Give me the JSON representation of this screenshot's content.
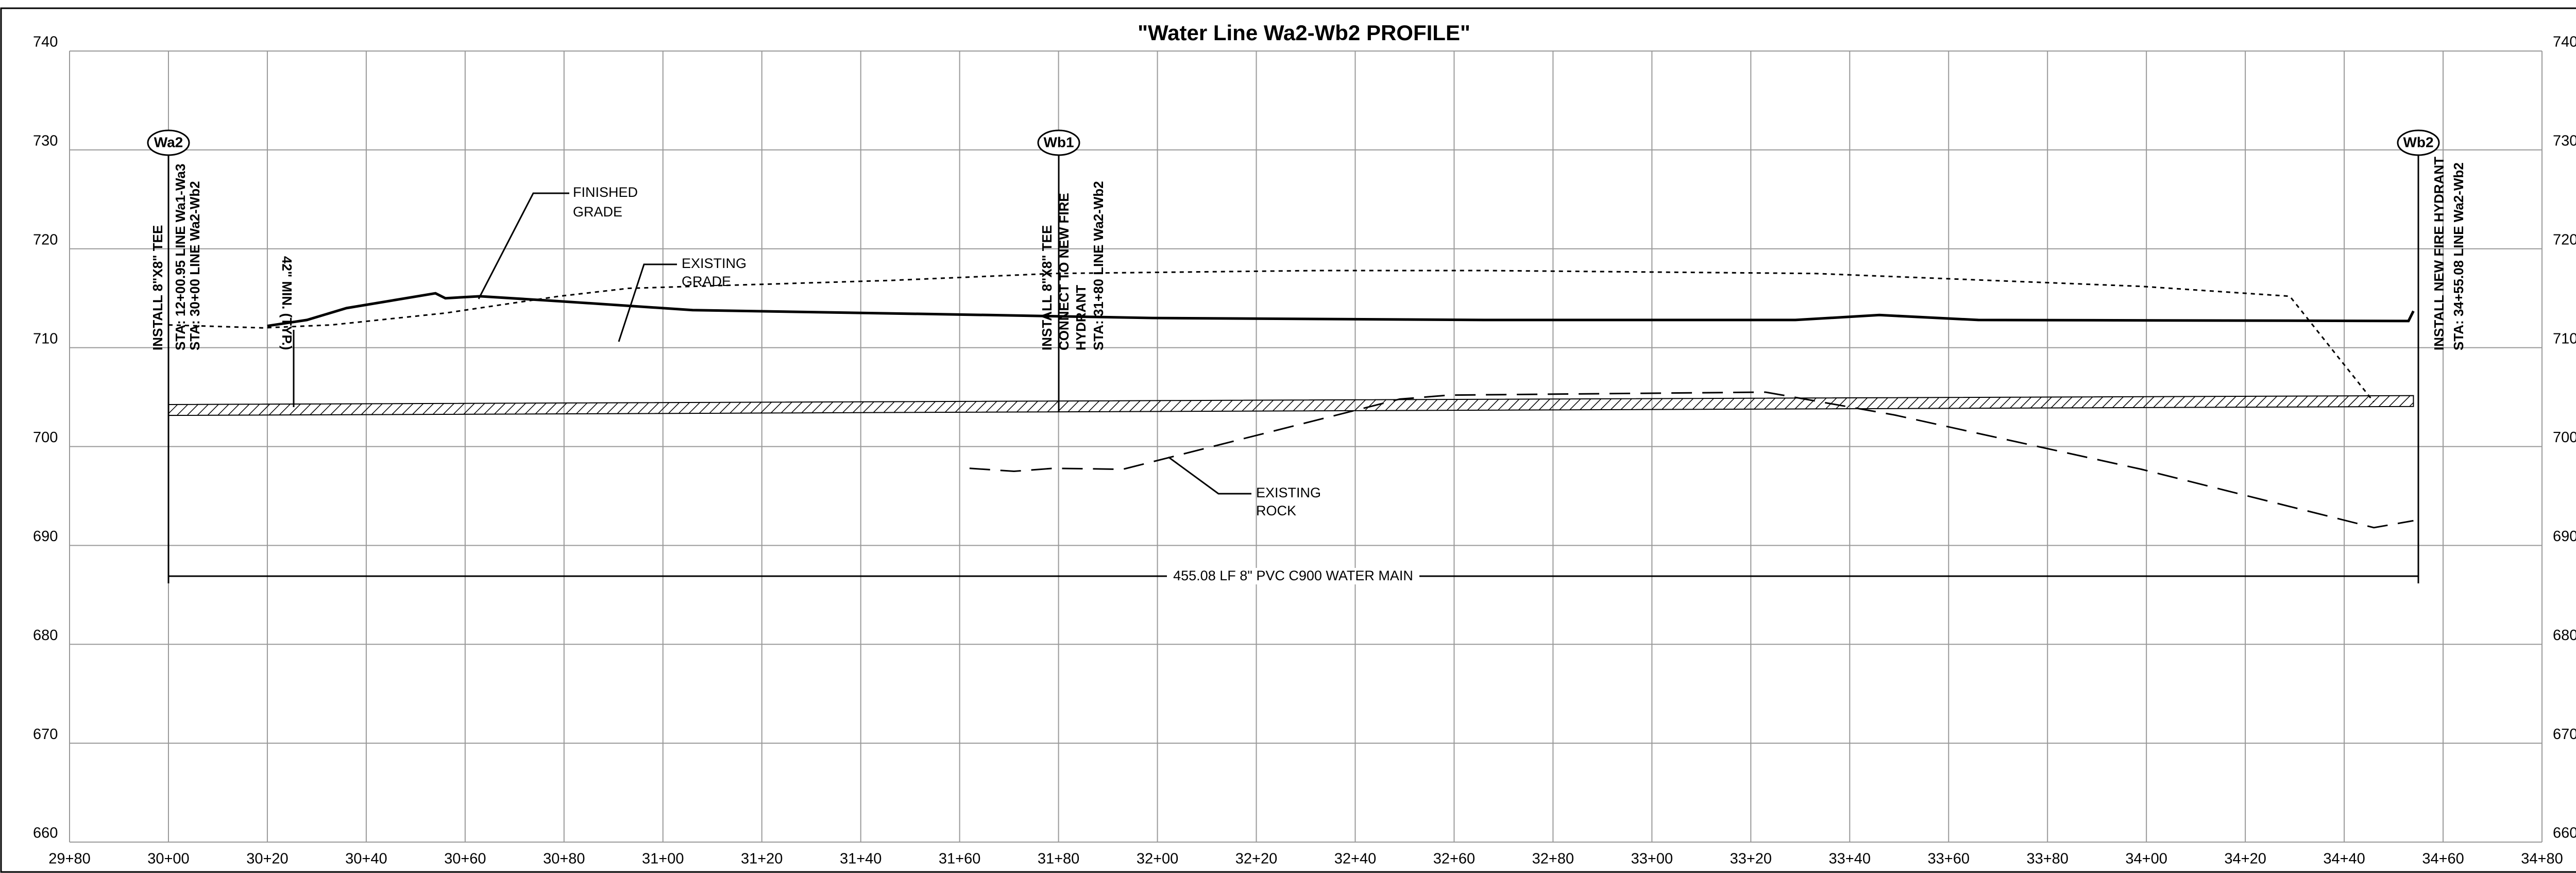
{
  "chart_data": {
    "type": "line",
    "title": "\"Water Line Wa2-Wb2 PROFILE\"",
    "xlim": [
      2980,
      3480
    ],
    "ylim": [
      660,
      740
    ],
    "grid": true,
    "xticks": [
      {
        "value": 2980,
        "label": "29+80"
      },
      {
        "value": 3000,
        "label": "30+00"
      },
      {
        "value": 3020,
        "label": "30+20"
      },
      {
        "value": 3040,
        "label": "30+40"
      },
      {
        "value": 3060,
        "label": "30+60"
      },
      {
        "value": 3080,
        "label": "30+80"
      },
      {
        "value": 3100,
        "label": "31+00"
      },
      {
        "value": 3120,
        "label": "31+20"
      },
      {
        "value": 3140,
        "label": "31+40"
      },
      {
        "value": 3160,
        "label": "31+60"
      },
      {
        "value": 3180,
        "label": "31+80"
      },
      {
        "value": 3200,
        "label": "32+00"
      },
      {
        "value": 3220,
        "label": "32+20"
      },
      {
        "value": 3240,
        "label": "32+40"
      },
      {
        "value": 3260,
        "label": "32+60"
      },
      {
        "value": 3280,
        "label": "32+80"
      },
      {
        "value": 3300,
        "label": "33+00"
      },
      {
        "value": 3320,
        "label": "33+20"
      },
      {
        "value": 3340,
        "label": "33+40"
      },
      {
        "value": 3360,
        "label": "33+60"
      },
      {
        "value": 3380,
        "label": "33+80"
      },
      {
        "value": 3400,
        "label": "34+00"
      },
      {
        "value": 3420,
        "label": "34+20"
      },
      {
        "value": 3440,
        "label": "34+40"
      },
      {
        "value": 3460,
        "label": "34+60"
      },
      {
        "value": 3480,
        "label": "34+80"
      }
    ],
    "yticks": [
      660,
      670,
      680,
      690,
      700,
      710,
      720,
      730,
      740
    ],
    "series": [
      {
        "color": "#000000",
        "dash": "solid",
        "width": 5,
        "x": [
          3020,
          3028,
          3036,
          3054,
          3056,
          3063,
          3079,
          3106,
          3166,
          3199,
          3266,
          3329,
          3346,
          3366,
          3453,
          3454
        ],
        "values": [
          712.2,
          712.8,
          714,
          715.5,
          715,
          715.2,
          714.7,
          713.8,
          713.3,
          713,
          712.8,
          712.8,
          713.3,
          712.8,
          712.7,
          713.7
        ]
      },
      {
        "color": "#000000",
        "dash": "dotted",
        "width": 3,
        "x": [
          3000,
          3019,
          3033,
          3056,
          3079,
          3093,
          3146,
          3179,
          3233,
          3266,
          3333,
          3399,
          3429,
          3446
        ],
        "values": [
          712.3,
          712,
          712.3,
          713.5,
          715.2,
          716,
          716.8,
          717.5,
          717.8,
          717.8,
          717.5,
          716.2,
          715.2,
          704.5
        ]
      },
      {
        "color": "#000000",
        "dash": "dashed",
        "width": 3,
        "x": [
          3162,
          3171,
          3179,
          3193,
          3219,
          3249,
          3259,
          3323,
          3349,
          3399,
          3446,
          3454
        ],
        "values": [
          697.8,
          697.5,
          697.8,
          697.7,
          701,
          704.8,
          705.2,
          705.5,
          703.2,
          697.7,
          691.8,
          692.5
        ]
      },
      {
        "color": "#000000",
        "dash": "pipe",
        "width": 2,
        "x": [
          3000,
          3454
        ],
        "values": [
          703.7,
          704.6
        ]
      }
    ],
    "stations": [
      "Wa2",
      "Wb1",
      "Wb2"
    ],
    "notes": {
      "wa2": [
        "INSTALL 8\"X8\" TEE",
        "STA: 12+00.95 LINE Wa1-Wa3",
        "STA: 30+00 LINE Wa2-Wb2"
      ],
      "wb1": [
        "INSTALL 8\"X8\" TEE",
        "CONNECT TO  NEW FIRE",
        "HYDRANT",
        "STA: 31+80 LINE Wa2-Wb2"
      ],
      "wb2": [
        "INSTALL NEW FIRE HYDRANT",
        "STA: 34+55.08 LINE Wa2-Wb2"
      ],
      "cover": "42\" MIN. (TYP.)",
      "finished_grade": [
        "FINISHED",
        "GRADE"
      ],
      "existing_grade": [
        "EXISTING",
        "GRADE"
      ],
      "existing_rock": [
        "EXISTING",
        "ROCK"
      ],
      "main": "455.08 LF 8\" PVC C900 WATER MAIN"
    }
  }
}
